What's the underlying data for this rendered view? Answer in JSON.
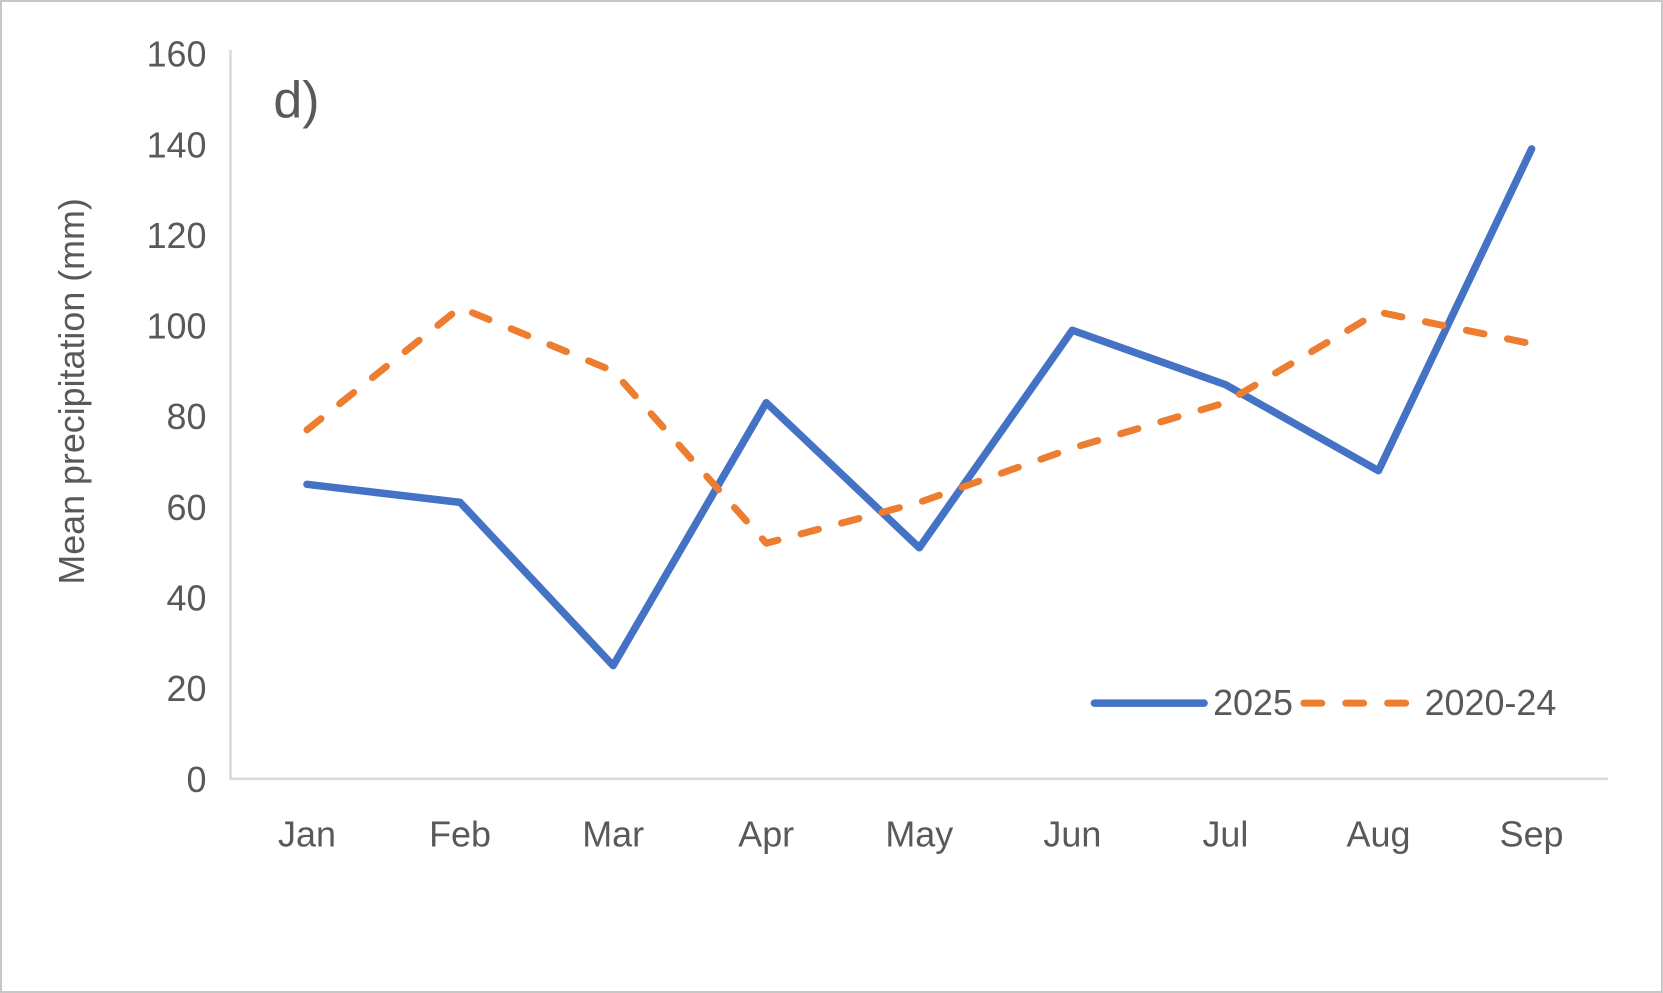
{
  "figure": {
    "label": "d)"
  },
  "chart_data": {
    "type": "line",
    "categories": [
      "Jan",
      "Feb",
      "Mar",
      "Apr",
      "May",
      "Jun",
      "Jul",
      "Aug",
      "Sep"
    ],
    "series": [
      {
        "name": "2025",
        "values": [
          65,
          61,
          25,
          83,
          51,
          99,
          87,
          68,
          139
        ],
        "color": "#4472C4",
        "dash": "solid"
      },
      {
        "name": "2020-24",
        "values": [
          77,
          104,
          90,
          52,
          61,
          73,
          83,
          103,
          96
        ],
        "color": "#ED7D31",
        "dash": "dashed"
      }
    ],
    "title": "",
    "xlabel": "",
    "ylabel": "Mean precipitation (mm)",
    "ylim": [
      0,
      160
    ],
    "yticks": [
      0,
      20,
      40,
      60,
      80,
      100,
      120,
      140,
      160
    ],
    "grid": false,
    "legend_position": "inside-bottom-right"
  },
  "colors": {
    "axis_line": "#D9D9D9",
    "text": "#595959",
    "background": "#FFFFFF",
    "series_2025": "#4472C4",
    "series_2020_24": "#ED7D31"
  }
}
